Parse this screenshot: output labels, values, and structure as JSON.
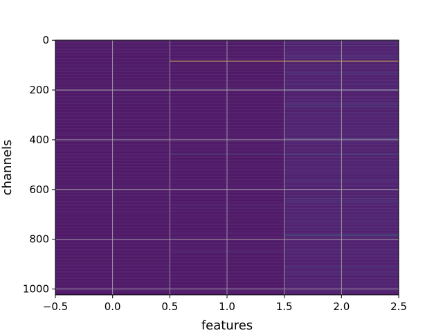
{
  "chart_data": {
    "type": "heatmap",
    "title": "",
    "xlabel": "features",
    "ylabel": "channels",
    "xlim": [
      -0.5,
      2.5
    ],
    "ylim": [
      1023.5,
      -0.5
    ],
    "x_ticks": [
      -0.5,
      0.0,
      0.5,
      1.0,
      1.5,
      2.0,
      2.5
    ],
    "x_tick_labels": [
      "−0.5",
      "0.0",
      "0.5",
      "1.0",
      "1.5",
      "2.0",
      "2.5"
    ],
    "y_ticks": [
      0,
      200,
      400,
      600,
      800,
      1000
    ],
    "y_tick_labels": [
      "0",
      "200",
      "400",
      "600",
      "800",
      "1000"
    ],
    "grid": true,
    "colormap": "viridis",
    "n_rows": 1024,
    "n_cols": 3,
    "base_values": [
      0.03,
      0.03,
      0.05
    ],
    "noise_amplitude": [
      0.035,
      0.035,
      0.06
    ],
    "highlights": [
      {
        "col": 1,
        "row": 20,
        "value": 0.25
      },
      {
        "col": 1,
        "row": 83,
        "value": 1.0
      },
      {
        "col": 1,
        "row": 84,
        "value": 1.0
      },
      {
        "col": 1,
        "row": 196,
        "value": 0.3
      },
      {
        "col": 1,
        "row": 458,
        "value": 0.5
      },
      {
        "col": 1,
        "row": 520,
        "value": 0.2
      },
      {
        "col": 1,
        "row": 675,
        "value": 0.2
      },
      {
        "col": 1,
        "row": 850,
        "value": 0.2
      },
      {
        "col": 1,
        "row": 1000,
        "value": 0.3
      },
      {
        "col": 0,
        "row": 375,
        "value": 0.18
      },
      {
        "col": 0,
        "row": 170,
        "value": 0.15
      },
      {
        "col": 2,
        "row": 20,
        "value": 0.3
      },
      {
        "col": 2,
        "row": 65,
        "value": 0.3
      },
      {
        "col": 2,
        "row": 83,
        "value": 1.0
      },
      {
        "col": 2,
        "row": 84,
        "value": 1.0
      },
      {
        "col": 2,
        "row": 130,
        "value": 0.3
      },
      {
        "col": 2,
        "row": 175,
        "value": 0.28
      },
      {
        "col": 2,
        "row": 198,
        "value": 0.3
      },
      {
        "col": 2,
        "row": 258,
        "value": 0.45
      },
      {
        "col": 2,
        "row": 268,
        "value": 0.4
      },
      {
        "col": 2,
        "row": 395,
        "value": 0.45
      },
      {
        "col": 2,
        "row": 458,
        "value": 0.5
      },
      {
        "col": 2,
        "row": 565,
        "value": 0.35
      },
      {
        "col": 2,
        "row": 635,
        "value": 0.4
      },
      {
        "col": 2,
        "row": 645,
        "value": 0.3
      },
      {
        "col": 2,
        "row": 780,
        "value": 0.45
      },
      {
        "col": 2,
        "row": 785,
        "value": 0.5
      },
      {
        "col": 2,
        "row": 910,
        "value": 0.4
      },
      {
        "col": 2,
        "row": 1000,
        "value": 0.35
      }
    ]
  }
}
